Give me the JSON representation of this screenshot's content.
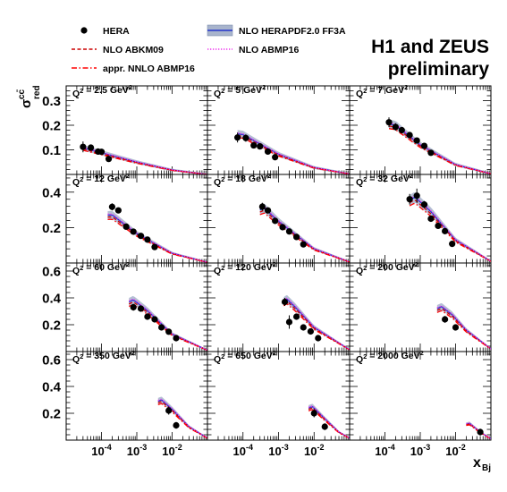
{
  "chart_data": {
    "type": "scatter",
    "title_lines": [
      "H1 and ZEUS",
      "preliminary"
    ],
    "ylabel": {
      "main": "σ",
      "sup": "cc̄",
      "sub": "red"
    },
    "xlabel": {
      "main": "x",
      "sub": "Bj"
    },
    "xscale": "log",
    "xlim": [
      1e-05,
      0.1
    ],
    "legend": {
      "placement": "top",
      "entries": [
        {
          "label": "HERA",
          "kind": "point",
          "color": "#000000"
        },
        {
          "label": "NLO ABKM09",
          "kind": "dashed",
          "color": "#cc0000"
        },
        {
          "label": "appr. NNLO ABMP16",
          "kind": "dashdot",
          "color": "#ff0000"
        },
        {
          "label": "NLO HERAPDF2.0 FF3A",
          "kind": "band",
          "color": "#2233cc",
          "band_color": "#a8b4cc"
        },
        {
          "label": "NLO ABMP16",
          "kind": "dotted",
          "color": "#ee33ee"
        }
      ]
    },
    "x_tick_labels": [
      {
        "value": 0.0001,
        "base": "10",
        "exp": "-4"
      },
      {
        "value": 0.001,
        "base": "10",
        "exp": "-3"
      },
      {
        "value": 0.01,
        "base": "10",
        "exp": "-2"
      }
    ],
    "rows": [
      {
        "ylim": [
          0,
          0.36
        ],
        "yticks": [
          0.1,
          0.2,
          0.3
        ],
        "ytick_labels": [
          "0.1",
          "0.2",
          "0.3"
        ]
      },
      {
        "ylim": [
          0,
          0.5
        ],
        "yticks": [
          0.2,
          0.4
        ],
        "ytick_labels": [
          "0.2",
          "0.4"
        ]
      },
      {
        "ylim": [
          0,
          0.66
        ],
        "yticks": [
          0.2,
          0.4,
          0.6
        ],
        "ytick_labels": [
          "0.2",
          "0.4",
          "0.6"
        ]
      },
      {
        "ylim": [
          0,
          0.66
        ],
        "yticks": [
          0.2,
          0.4,
          0.6
        ],
        "ytick_labels": [
          "0.2",
          "0.4",
          "0.6"
        ]
      }
    ],
    "panels": [
      {
        "label": "Q² = 2.5 GeV²",
        "q2": 2.5,
        "points": [
          [
            3e-05,
            0.112,
            0.022
          ],
          [
            5e-05,
            0.109,
            0.01
          ],
          [
            8e-05,
            0.093,
            0.013
          ],
          [
            0.0001,
            0.092,
            0.01
          ],
          [
            0.00016,
            0.063,
            0.007
          ]
        ],
        "curve": {
          "x": [
            3e-05,
            0.0001,
            0.001,
            0.01,
            0.1
          ],
          "y": [
            0.108,
            0.088,
            0.05,
            0.018,
            0.0
          ]
        }
      },
      {
        "label": "Q² = 5 GeV²",
        "q2": 5,
        "points": [
          [
            7e-05,
            0.15,
            0.02
          ],
          [
            0.00012,
            0.148,
            0.015
          ],
          [
            0.0002,
            0.118,
            0.012
          ],
          [
            0.0003,
            0.114,
            0.01
          ],
          [
            0.0005,
            0.093,
            0.008
          ],
          [
            0.0008,
            0.07,
            0.007
          ]
        ],
        "curve": {
          "x": [
            7e-05,
            0.0001,
            0.001,
            0.01,
            0.1
          ],
          "y": [
            0.165,
            0.162,
            0.082,
            0.028,
            0.002
          ]
        }
      },
      {
        "label": "Q² = 7 GeV²",
        "q2": 7,
        "points": [
          [
            0.00013,
            0.212,
            0.02
          ],
          [
            0.0002,
            0.193,
            0.015
          ],
          [
            0.0003,
            0.18,
            0.012
          ],
          [
            0.0005,
            0.16,
            0.01
          ],
          [
            0.0008,
            0.138,
            0.008
          ],
          [
            0.0013,
            0.116,
            0.008
          ],
          [
            0.002,
            0.088,
            0.007
          ]
        ],
        "curve": {
          "x": [
            0.00013,
            0.0002,
            0.001,
            0.01,
            0.1
          ],
          "y": [
            0.205,
            0.2,
            0.12,
            0.04,
            0.003
          ]
        }
      },
      {
        "label": "Q² = 12 GeV²",
        "q2": 12,
        "points": [
          [
            0.0002,
            0.317,
            0.02
          ],
          [
            0.0003,
            0.297,
            0.015
          ],
          [
            0.0005,
            0.205,
            0.012
          ],
          [
            0.0008,
            0.177,
            0.01
          ],
          [
            0.0013,
            0.153,
            0.009
          ],
          [
            0.002,
            0.132,
            0.008
          ],
          [
            0.0032,
            0.09,
            0.007
          ]
        ],
        "curve": {
          "x": [
            0.00015,
            0.0002,
            0.001,
            0.01,
            0.1
          ],
          "y": [
            0.27,
            0.272,
            0.165,
            0.055,
            0.004
          ]
        }
      },
      {
        "label": "Q² = 18 GeV²",
        "q2": 18,
        "points": [
          [
            0.00035,
            0.318,
            0.022
          ],
          [
            0.0005,
            0.297,
            0.015
          ],
          [
            0.0008,
            0.238,
            0.012
          ],
          [
            0.0013,
            0.202,
            0.01
          ],
          [
            0.002,
            0.178,
            0.009
          ],
          [
            0.0032,
            0.147,
            0.008
          ],
          [
            0.005,
            0.105,
            0.007
          ]
        ],
        "curve": {
          "x": [
            0.0003,
            0.0004,
            0.001,
            0.01,
            0.1
          ],
          "y": [
            0.3,
            0.31,
            0.235,
            0.08,
            0.006
          ]
        }
      },
      {
        "label": "Q² = 32 GeV²",
        "q2": 32,
        "points": [
          [
            0.0005,
            0.36,
            0.03
          ],
          [
            0.0008,
            0.38,
            0.04
          ],
          [
            0.0013,
            0.33,
            0.02
          ],
          [
            0.002,
            0.25,
            0.015
          ],
          [
            0.0032,
            0.21,
            0.012
          ],
          [
            0.005,
            0.18,
            0.01
          ],
          [
            0.008,
            0.108,
            0.008
          ]
        ],
        "curve": {
          "x": [
            0.0005,
            0.0007,
            0.002,
            0.01,
            0.1
          ],
          "y": [
            0.355,
            0.372,
            0.29,
            0.13,
            0.01
          ]
        }
      },
      {
        "label": "Q² = 60 GeV²",
        "q2": 60,
        "points": [
          [
            0.0008,
            0.33,
            0.025
          ],
          [
            0.0013,
            0.32,
            0.02
          ],
          [
            0.002,
            0.26,
            0.015
          ],
          [
            0.0032,
            0.24,
            0.012
          ],
          [
            0.005,
            0.18,
            0.012
          ],
          [
            0.008,
            0.148,
            0.01
          ],
          [
            0.013,
            0.1,
            0.008
          ]
        ],
        "curve": {
          "x": [
            0.0006,
            0.0008,
            0.002,
            0.01,
            0.1
          ],
          "y": [
            0.37,
            0.385,
            0.305,
            0.13,
            0.01
          ]
        }
      },
      {
        "label": "Q² = 120 GeV²",
        "q2": 120,
        "points": [
          [
            0.0015,
            0.37,
            0.03
          ],
          [
            0.002,
            0.22,
            0.05
          ],
          [
            0.0032,
            0.26,
            0.02
          ],
          [
            0.005,
            0.18,
            0.015
          ],
          [
            0.008,
            0.15,
            0.012
          ],
          [
            0.013,
            0.1,
            0.01
          ]
        ],
        "curve": {
          "x": [
            0.0014,
            0.0017,
            0.003,
            0.01,
            0.1
          ],
          "y": [
            0.375,
            0.392,
            0.33,
            0.18,
            0.014
          ]
        }
      },
      {
        "label": "Q² = 200 GeV²",
        "q2": 200,
        "points": [
          [
            0.005,
            0.24,
            0.025
          ],
          [
            0.01,
            0.18,
            0.02
          ]
        ],
        "curve": {
          "x": [
            0.003,
            0.004,
            0.008,
            0.02,
            0.1
          ],
          "y": [
            0.32,
            0.335,
            0.275,
            0.16,
            0.02
          ]
        }
      },
      {
        "label": "Q² = 350 GeV²",
        "q2": 350,
        "points": [
          [
            0.008,
            0.22,
            0.03
          ],
          [
            0.013,
            0.11,
            0.025
          ]
        ],
        "curve": {
          "x": [
            0.004,
            0.005,
            0.01,
            0.03,
            0.1
          ],
          "y": [
            0.29,
            0.3,
            0.23,
            0.1,
            0.015
          ]
        }
      },
      {
        "label": "Q² = 650 GeV²",
        "q2": 650,
        "points": [
          [
            0.01,
            0.2,
            0.03
          ],
          [
            0.02,
            0.1,
            0.025
          ]
        ],
        "curve": {
          "x": [
            0.007,
            0.009,
            0.02,
            0.05,
            0.1
          ],
          "y": [
            0.24,
            0.25,
            0.16,
            0.06,
            0.015
          ]
        }
      },
      {
        "label": "Q² = 2000 GeV²",
        "q2": 2000,
        "points": [
          [
            0.05,
            0.06,
            0.025
          ]
        ],
        "curve": {
          "x": [
            0.02,
            0.025,
            0.05,
            0.1
          ],
          "y": [
            0.12,
            0.125,
            0.06,
            0.01
          ]
        }
      }
    ]
  }
}
